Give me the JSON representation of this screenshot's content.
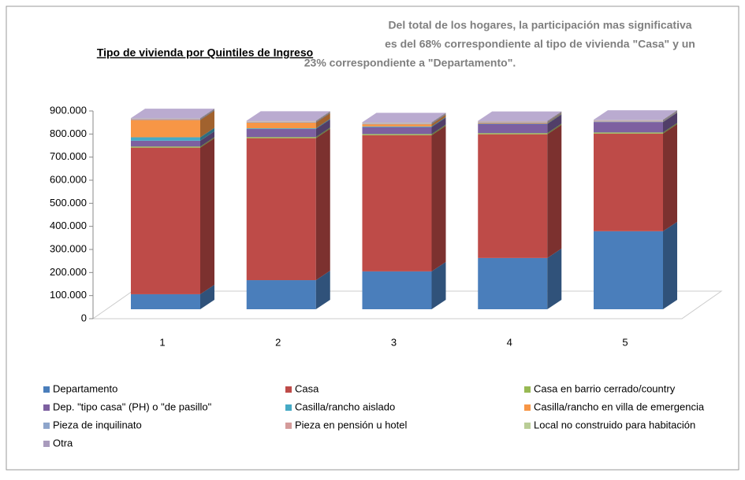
{
  "chart_data": {
    "type": "bar3d_stacked",
    "title": "Tipo de vivienda por Quintiles de Ingreso",
    "annotation": [
      "Del total de los hogares, la participación mas significativa",
      "es del 68% correspondiente al tipo de vivienda \"Casa\" y un",
      "23% correspondiente a \"Departamento\"."
    ],
    "categories": [
      "1",
      "2",
      "3",
      "4",
      "5"
    ],
    "series": [
      {
        "name": "Departamento",
        "color": "#4a7ebb",
        "values": [
          65000,
          126000,
          164000,
          222000,
          338000
        ]
      },
      {
        "name": "Casa",
        "color": "#be4b48",
        "values": [
          635000,
          615000,
          590000,
          536000,
          423000
        ]
      },
      {
        "name": "Casa en barrio cerrado/country",
        "color": "#98b954",
        "values": [
          5000,
          5000,
          5000,
          5000,
          5000
        ]
      },
      {
        "name": "Dep. \"tipo casa\" (PH) o \"de pasillo\"",
        "color": "#7d60a0",
        "values": [
          25000,
          35000,
          30000,
          40000,
          45000
        ]
      },
      {
        "name": "Casilla/rancho aislado",
        "color": "#46aac5",
        "values": [
          15000,
          3000,
          3000,
          2000,
          1000
        ]
      },
      {
        "name": "Casilla/rancho en villa de emergencia",
        "color": "#f79646",
        "values": [
          75000,
          25000,
          10000,
          3000,
          1000
        ]
      },
      {
        "name": "Pieza de inquilinato",
        "color": "#8ea5cb",
        "values": [
          3000,
          3000,
          3000,
          3000,
          3000
        ]
      },
      {
        "name": "Pieza en pensión u hotel",
        "color": "#d49b9a",
        "values": [
          2000,
          2000,
          2000,
          2000,
          2000
        ]
      },
      {
        "name": "Local no construido para habitación",
        "color": "#b9cd96",
        "values": [
          1000,
          1000,
          1000,
          1000,
          1000
        ]
      },
      {
        "name": "Otra",
        "color": "#a99bbd",
        "values": [
          2000,
          2000,
          2000,
          2000,
          2000
        ]
      }
    ],
    "ylim": [
      0,
      900000
    ],
    "yticks": [
      0,
      {
        "value": 100000,
        "label": "100.000"
      },
      {
        "value": 200000,
        "label": "200.000"
      },
      {
        "value": 300000,
        "label": "300.000"
      },
      {
        "value": 400000,
        "label": "400.000"
      },
      {
        "value": 500000,
        "label": "500.000"
      },
      {
        "value": 600000,
        "label": "600.000"
      },
      {
        "value": 700000,
        "label": "700.000"
      },
      {
        "value": 800000,
        "label": "800.000"
      },
      {
        "value": 900000,
        "label": "900.000"
      }
    ],
    "grid": false
  }
}
